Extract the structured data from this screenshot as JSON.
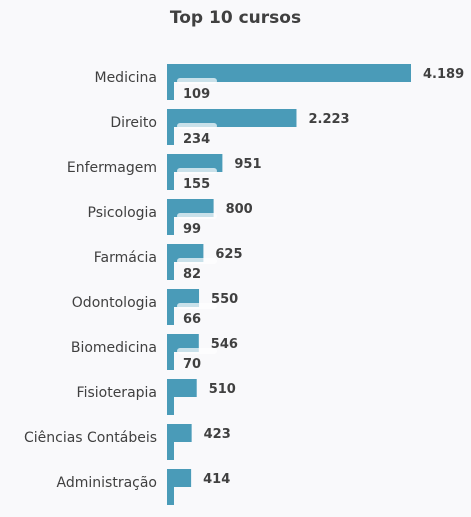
{
  "chart_data": {
    "type": "bar",
    "orientation": "horizontal",
    "title": "Top 10 cursos",
    "categories": [
      "Medicina",
      "Direito",
      "Enfermagem",
      "Psicologia",
      "Farmácia",
      "Odontologia",
      "Biomedicina",
      "Fisioterapia",
      "Ciências Contábeis",
      "Administração"
    ],
    "series": [
      {
        "values": [
          4189,
          2223,
          951,
          800,
          625,
          550,
          546,
          510,
          423,
          414
        ],
        "labels": [
          "4.189",
          "2.223",
          "951",
          "800",
          "625",
          "550",
          "546",
          "510",
          "423",
          "414"
        ],
        "color": "#4a9bb8"
      },
      {
        "values": [
          109,
          234,
          155,
          99,
          82,
          66,
          70,
          null,
          null,
          null
        ],
        "labels": [
          "109",
          "234",
          "155",
          "99",
          "82",
          "66",
          "70",
          "",
          "",
          ""
        ],
        "color": "#4a9bb8"
      }
    ],
    "xlim": [
      0,
      4500
    ],
    "grid": false,
    "legend": "none"
  }
}
